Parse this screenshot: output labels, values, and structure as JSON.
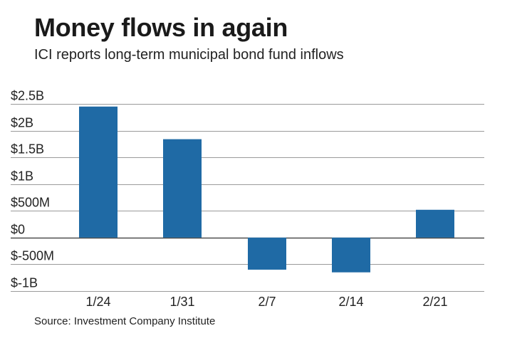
{
  "title": "Money flows in again",
  "subtitle": "ICI reports long-term municipal bond fund inflows",
  "source": "Source: Investment Company Institute",
  "colors": {
    "bar": "#1f6aa5",
    "grid": "#9a9a9a",
    "axis": "#333333"
  },
  "chart_data": {
    "type": "bar",
    "title": "Money flows in again",
    "subtitle": "ICI reports long-term municipal bond fund inflows",
    "xlabel": "",
    "ylabel": "",
    "categories": [
      "1/24",
      "1/31",
      "2/7",
      "2/14",
      "2/21"
    ],
    "values": [
      2.45,
      1.84,
      -0.6,
      -0.65,
      0.52
    ],
    "unit": "billions of dollars",
    "ylim": [
      -1,
      2.5
    ],
    "yticks": [
      {
        "value": 2.5,
        "label": "$2.5B"
      },
      {
        "value": 2,
        "label": "$2B"
      },
      {
        "value": 1.5,
        "label": "$1.5B"
      },
      {
        "value": 1,
        "label": "$1B"
      },
      {
        "value": 0.5,
        "label": "$500M"
      },
      {
        "value": 0,
        "label": "$0"
      },
      {
        "value": -0.5,
        "label": "$-500M"
      },
      {
        "value": -1,
        "label": "$-1B"
      }
    ],
    "grid": true,
    "legend": "none"
  }
}
